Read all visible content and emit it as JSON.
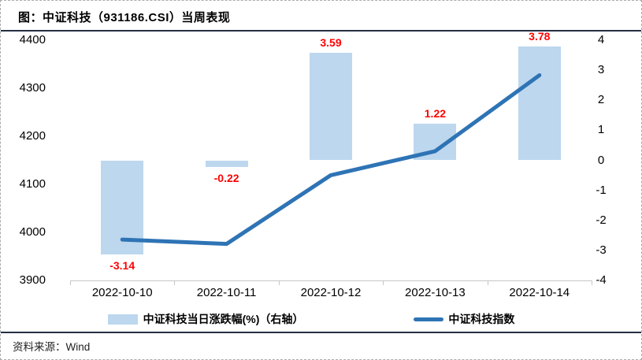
{
  "title": "图：中证科技（931186.CSI）当周表现",
  "legend": {
    "bar_label": "中证科技当日涨跌幅(%)（右轴）",
    "line_label": "中证科技指数"
  },
  "footer": {
    "source": "资料来源：Wind"
  },
  "colors": {
    "bar_fill": "#BDD7EE",
    "line_stroke": "#2E74B5",
    "bar_value_label": "#FF0000",
    "rule": "#252F44",
    "axis_line": "#C6C6C6"
  },
  "chart_data": {
    "type": "bar+line combo, dual axis",
    "categories": [
      "2022-10-10",
      "2022-10-11",
      "2022-10-12",
      "2022-10-13",
      "2022-10-14"
    ],
    "series": [
      {
        "name": "中证科技当日涨跌幅(%)（右轴）",
        "type": "bar",
        "axis": "right",
        "values": [
          -3.14,
          -0.22,
          3.59,
          1.22,
          3.78
        ],
        "data_labels_shown": true
      },
      {
        "name": "中证科技指数",
        "type": "line",
        "axis": "left",
        "values": [
          3985,
          3976,
          4119,
          4169,
          4327
        ],
        "data_labels_shown": false
      }
    ],
    "left_axis": {
      "min": 3900,
      "max": 4400,
      "ticks": [
        3900,
        4000,
        4100,
        4200,
        4300,
        4400
      ]
    },
    "right_axis": {
      "min": -4,
      "max": 4,
      "ticks": [
        -4,
        -3,
        -2,
        -1,
        0,
        1,
        2,
        3,
        4
      ]
    },
    "grid": false,
    "legend_position": "bottom"
  }
}
